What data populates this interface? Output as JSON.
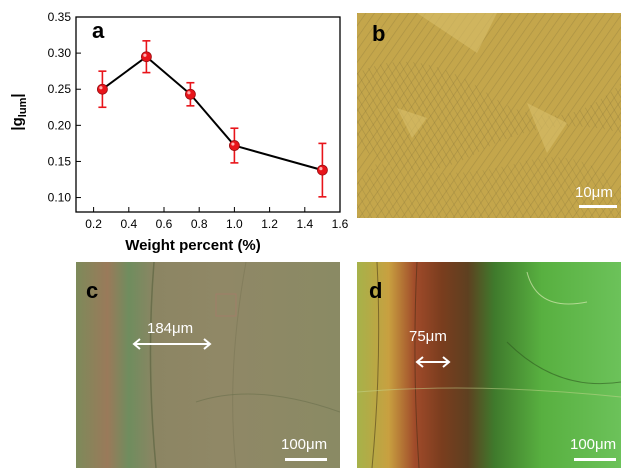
{
  "panels": {
    "a": {
      "label": "a"
    },
    "b": {
      "label": "b",
      "scale_bar": "10μm"
    },
    "c": {
      "label": "c",
      "scale_bar": "100μm",
      "measurement": "184μm"
    },
    "d": {
      "label": "d",
      "scale_bar": "100μm",
      "measurement": "75μm"
    }
  },
  "colors": {
    "line": "#000000",
    "marker": "#e8141a",
    "errorbar": "#e8141a",
    "panel_b": "#c4a64b",
    "panel_c": "#8f8a63",
    "panel_d": "#5aa834"
  },
  "chart_data": {
    "type": "line",
    "xlabel": "Weight percent (%)",
    "ylabel": "|glum|",
    "ylabel_main": "|g",
    "ylabel_sub": "lum",
    "ylabel_end": "|",
    "xlim": [
      0.1,
      1.6
    ],
    "ylim": [
      0.08,
      0.35
    ],
    "xticks": [
      "0.2",
      "0.4",
      "0.6",
      "0.8",
      "1.0",
      "1.2",
      "1.4",
      "1.6"
    ],
    "yticks": [
      "0.10",
      "0.15",
      "0.20",
      "0.25",
      "0.30",
      "0.35"
    ],
    "x": [
      0.25,
      0.5,
      0.75,
      1.0,
      1.5
    ],
    "y": [
      0.25,
      0.295,
      0.243,
      0.172,
      0.138
    ],
    "err": [
      0.025,
      0.022,
      0.016,
      0.024,
      0.037
    ],
    "grid": false
  }
}
